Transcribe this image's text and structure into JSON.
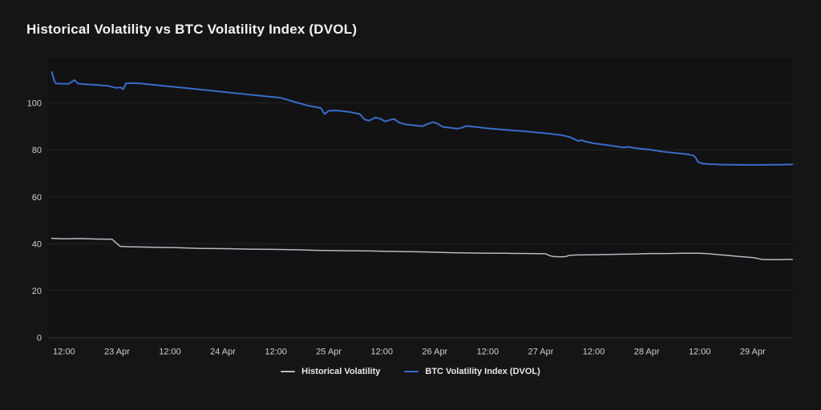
{
  "chart_data": {
    "type": "line",
    "title": "Historical Volatility vs BTC Volatility Index (DVOL)",
    "xlabel": "",
    "ylabel": "",
    "legend_position": "bottom-center",
    "grid": true,
    "x_axis": {
      "tick_labels": [
        "12:00",
        "23 Apr",
        "12:00",
        "24 Apr",
        "12:00",
        "25 Apr",
        "12:00",
        "26 Apr",
        "12:00",
        "27 Apr",
        "12:00",
        "28 Apr",
        "12:00",
        "29 Apr"
      ],
      "domain": [
        -0.3,
        13.76
      ]
    },
    "y_axis": {
      "tick_values": [
        0,
        20,
        40,
        60,
        80,
        100
      ],
      "tick_labels": [
        "0",
        "20",
        "40",
        "60",
        "80",
        "100"
      ],
      "range": [
        0,
        120
      ],
      "grid_values": [
        0,
        20,
        40,
        60,
        80,
        100,
        120
      ]
    },
    "series": [
      {
        "name": "Historical Volatility",
        "color": "#b7bac0",
        "stroke_width": 1.5,
        "points": [
          [
            -0.23,
            42.3
          ],
          [
            0.0,
            42.1
          ],
          [
            0.3,
            42.2
          ],
          [
            0.61,
            42.0
          ],
          [
            0.91,
            41.9
          ],
          [
            0.98,
            40.4
          ],
          [
            1.06,
            38.9
          ],
          [
            1.21,
            38.7
          ],
          [
            1.67,
            38.5
          ],
          [
            2.12,
            38.3
          ],
          [
            2.58,
            38.0
          ],
          [
            3.03,
            37.9
          ],
          [
            3.48,
            37.7
          ],
          [
            3.94,
            37.6
          ],
          [
            4.39,
            37.4
          ],
          [
            4.85,
            37.1
          ],
          [
            5.3,
            37.0
          ],
          [
            5.76,
            36.9
          ],
          [
            6.21,
            36.7
          ],
          [
            6.52,
            36.6
          ],
          [
            6.82,
            36.5
          ],
          [
            7.27,
            36.2
          ],
          [
            7.88,
            36.0
          ],
          [
            8.33,
            35.9
          ],
          [
            8.79,
            35.8
          ],
          [
            9.09,
            35.7
          ],
          [
            9.17,
            34.9
          ],
          [
            9.24,
            34.5
          ],
          [
            9.39,
            34.4
          ],
          [
            9.47,
            34.5
          ],
          [
            9.55,
            35.1
          ],
          [
            9.7,
            35.2
          ],
          [
            10.0,
            35.3
          ],
          [
            10.3,
            35.4
          ],
          [
            10.45,
            35.5
          ],
          [
            10.76,
            35.6
          ],
          [
            11.06,
            35.8
          ],
          [
            11.36,
            35.8
          ],
          [
            11.67,
            35.9
          ],
          [
            11.97,
            35.9
          ],
          [
            12.12,
            35.8
          ],
          [
            12.27,
            35.5
          ],
          [
            12.42,
            35.2
          ],
          [
            12.58,
            34.9
          ],
          [
            12.73,
            34.6
          ],
          [
            12.88,
            34.3
          ],
          [
            13.03,
            34.0
          ],
          [
            13.11,
            33.6
          ],
          [
            13.18,
            33.3
          ],
          [
            13.33,
            33.2
          ],
          [
            13.48,
            33.2
          ],
          [
            13.64,
            33.3
          ],
          [
            13.75,
            33.3
          ]
        ]
      },
      {
        "name": "BTC Volatility Index (DVOL)",
        "color": "#3a6bc9",
        "stroke_width": 2,
        "points": [
          [
            -0.23,
            113.2
          ],
          [
            -0.18,
            109.3
          ],
          [
            -0.15,
            108.3
          ],
          [
            -0.03,
            108.2
          ],
          [
            0.09,
            108.2
          ],
          [
            0.2,
            109.8
          ],
          [
            0.26,
            108.3
          ],
          [
            0.38,
            108.0
          ],
          [
            0.61,
            107.7
          ],
          [
            0.83,
            107.3
          ],
          [
            0.99,
            106.4
          ],
          [
            1.06,
            106.7
          ],
          [
            1.12,
            105.9
          ],
          [
            1.17,
            108.4
          ],
          [
            1.29,
            108.5
          ],
          [
            1.44,
            108.3
          ],
          [
            1.67,
            107.8
          ],
          [
            1.97,
            107.1
          ],
          [
            2.27,
            106.4
          ],
          [
            2.58,
            105.7
          ],
          [
            2.88,
            105.0
          ],
          [
            3.18,
            104.3
          ],
          [
            3.48,
            103.6
          ],
          [
            3.79,
            102.9
          ],
          [
            4.09,
            102.2
          ],
          [
            4.39,
            100.2
          ],
          [
            4.62,
            98.8
          ],
          [
            4.77,
            98.2
          ],
          [
            4.85,
            97.8
          ],
          [
            4.92,
            95.3
          ],
          [
            5.0,
            96.7
          ],
          [
            5.15,
            96.8
          ],
          [
            5.38,
            96.2
          ],
          [
            5.58,
            95.3
          ],
          [
            5.68,
            92.9
          ],
          [
            5.76,
            92.5
          ],
          [
            5.88,
            93.8
          ],
          [
            5.98,
            93.2
          ],
          [
            6.06,
            92.1
          ],
          [
            6.17,
            92.9
          ],
          [
            6.24,
            93.1
          ],
          [
            6.32,
            91.7
          ],
          [
            6.44,
            90.9
          ],
          [
            6.59,
            90.5
          ],
          [
            6.77,
            90.1
          ],
          [
            6.89,
            91.3
          ],
          [
            6.97,
            91.8
          ],
          [
            7.06,
            91.1
          ],
          [
            7.15,
            89.8
          ],
          [
            7.3,
            89.4
          ],
          [
            7.42,
            89.0
          ],
          [
            7.52,
            89.5
          ],
          [
            7.59,
            90.2
          ],
          [
            7.68,
            90.0
          ],
          [
            7.8,
            89.7
          ],
          [
            8.03,
            89.1
          ],
          [
            8.26,
            88.7
          ],
          [
            8.48,
            88.3
          ],
          [
            8.71,
            87.9
          ],
          [
            8.94,
            87.4
          ],
          [
            9.17,
            86.9
          ],
          [
            9.39,
            86.3
          ],
          [
            9.55,
            85.5
          ],
          [
            9.65,
            84.4
          ],
          [
            9.71,
            83.8
          ],
          [
            9.76,
            84.2
          ],
          [
            9.85,
            83.5
          ],
          [
            10.0,
            82.8
          ],
          [
            10.23,
            82.1
          ],
          [
            10.45,
            81.4
          ],
          [
            10.55,
            81.0
          ],
          [
            10.64,
            81.3
          ],
          [
            10.83,
            80.6
          ],
          [
            11.06,
            80.1
          ],
          [
            11.29,
            79.3
          ],
          [
            11.52,
            78.7
          ],
          [
            11.74,
            78.2
          ],
          [
            11.88,
            77.6
          ],
          [
            11.92,
            76.8
          ],
          [
            11.97,
            74.8
          ],
          [
            12.06,
            74.1
          ],
          [
            12.2,
            73.9
          ],
          [
            12.42,
            73.7
          ],
          [
            12.8,
            73.6
          ],
          [
            13.18,
            73.6
          ],
          [
            13.56,
            73.7
          ],
          [
            13.75,
            73.8
          ]
        ]
      }
    ],
    "colors": {
      "background": "#151515",
      "plot_background": "#121212",
      "gridline": "#232323",
      "axis_line": "#2f2f2f",
      "tick_text": "#cfcfcf",
      "title_text": "#f2f2f2",
      "legend_text": "#e8e8e8"
    }
  }
}
